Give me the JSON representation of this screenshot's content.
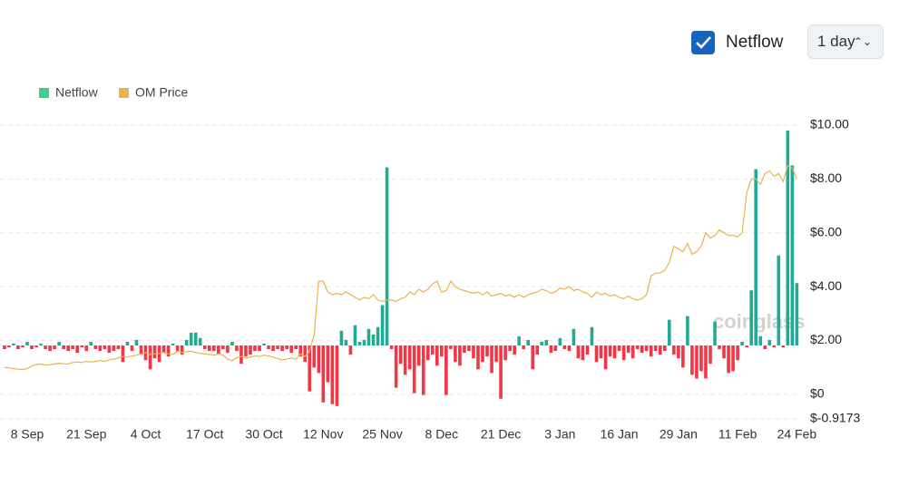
{
  "controls": {
    "checkbox_label": "Netflow",
    "interval": "1 day"
  },
  "chart_data": {
    "type": "bar_line",
    "watermark": "coinglass",
    "categories": [
      null,
      null,
      null,
      null,
      null,
      "8 Sep",
      null,
      null,
      null,
      null,
      null,
      null,
      null,
      null,
      null,
      null,
      null,
      null,
      "21 Sep",
      null,
      null,
      null,
      null,
      null,
      null,
      null,
      null,
      null,
      null,
      null,
      null,
      "4 Oct",
      null,
      null,
      null,
      null,
      null,
      null,
      null,
      null,
      null,
      null,
      null,
      null,
      "17 Oct",
      null,
      null,
      null,
      null,
      null,
      null,
      null,
      null,
      null,
      null,
      null,
      null,
      "30 Oct",
      null,
      null,
      null,
      null,
      null,
      null,
      null,
      null,
      null,
      null,
      null,
      null,
      "12 Nov",
      null,
      null,
      null,
      null,
      null,
      null,
      null,
      null,
      null,
      null,
      null,
      null,
      "25 Nov",
      null,
      null,
      null,
      null,
      null,
      null,
      null,
      null,
      null,
      null,
      null,
      null,
      "8 Dec",
      null,
      null,
      null,
      null,
      null,
      null,
      null,
      null,
      null,
      null,
      null,
      null,
      "21 Dec",
      null,
      null,
      null,
      null,
      null,
      null,
      null,
      null,
      null,
      null,
      null,
      null,
      "3 Jan",
      null,
      null,
      null,
      null,
      null,
      null,
      null,
      null,
      null,
      null,
      null,
      null,
      "16 Jan",
      null,
      null,
      null,
      null,
      null,
      null,
      null,
      null,
      null,
      null,
      null,
      null,
      "29 Jan",
      null,
      null,
      null,
      null,
      null,
      null,
      null,
      null,
      null,
      null,
      null,
      null,
      "11 Feb",
      null,
      null,
      null,
      null,
      null,
      null,
      null,
      null,
      null,
      null,
      null,
      null,
      "24 Feb"
    ],
    "series": [
      {
        "name": "Netflow",
        "color": "#22ab94",
        "negative_color": "#f23645",
        "legend_color": "#3ecf8e",
        "axis": "y2",
        "values": [
          -0.2,
          -0.1,
          0.1,
          -0.2,
          -0.1,
          0.2,
          -0.2,
          -0.1,
          0.1,
          -0.2,
          -0.3,
          -0.2,
          0.2,
          -0.2,
          -0.3,
          -0.2,
          -0.4,
          -0.1,
          -0.3,
          0.2,
          -0.2,
          -0.3,
          -0.2,
          -0.4,
          -0.3,
          -0.2,
          -0.9,
          0.2,
          -0.3,
          0.3,
          -0.5,
          -0.8,
          -1.3,
          -0.7,
          -0.9,
          -0.4,
          -0.6,
          0.1,
          -0.3,
          -0.5,
          0.3,
          0.7,
          0.7,
          0.4,
          -0.2,
          -0.3,
          -0.3,
          -0.5,
          -0.2,
          -0.4,
          0.2,
          -0.3,
          -1.0,
          -0.6,
          -0.5,
          -0.3,
          -0.3,
          0.1,
          -0.2,
          -0.3,
          -0.2,
          -0.3,
          -0.2,
          -0.4,
          -0.2,
          -0.6,
          -0.9,
          -2.5,
          -1.2,
          -1.5,
          -3.1,
          -2.0,
          -3.2,
          -3.3,
          0.8,
          0.3,
          -0.5,
          1.1,
          0.2,
          0.3,
          0.9,
          0.6,
          1.0,
          2.2,
          9.7,
          -0.2,
          -2.3,
          -1.0,
          -1.6,
          -1.3,
          -2.6,
          -1.1,
          -2.7,
          -0.8,
          -0.5,
          -1.1,
          -0.6,
          -2.7,
          -0.2,
          -0.9,
          -1.1,
          -0.4,
          -0.3,
          -0.7,
          -1.3,
          -0.9,
          -0.6,
          -1.5,
          -0.9,
          -2.9,
          -0.8,
          -0.3,
          -0.5,
          0.5,
          -0.2,
          0.3,
          -1.3,
          -0.5,
          0.2,
          0.3,
          -0.4,
          -0.3,
          0.4,
          -0.2,
          -0.3,
          0.9,
          -0.7,
          -0.8,
          -0.5,
          1.0,
          -0.9,
          -0.7,
          -1.3,
          -0.6,
          -0.7,
          -0.3,
          -0.8,
          -0.4,
          -0.7,
          -0.2,
          -0.4,
          -0.3,
          -0.6,
          -0.3,
          -0.5,
          -0.3,
          1.4,
          -0.5,
          -0.7,
          -1.2,
          1.6,
          -1.6,
          -1.8,
          -1.4,
          -1.8,
          -1.0,
          1.3,
          -0.2,
          -0.7,
          -1.5,
          -1.4,
          -0.8,
          0.2,
          -0.1,
          3.0,
          9.6,
          0.5,
          -0.2,
          0.3,
          -0.1,
          4.9,
          -0.1,
          11.7,
          9.8,
          3.4
        ]
      },
      {
        "name": "OM Price",
        "color": "#e8b44a",
        "values": [
          1.0,
          0.98,
          0.95,
          0.93,
          0.92,
          0.95,
          1.05,
          1.1,
          1.12,
          1.08,
          1.1,
          1.12,
          1.15,
          1.13,
          1.12,
          1.18,
          1.2,
          1.18,
          1.22,
          1.2,
          1.22,
          1.25,
          1.22,
          1.28,
          1.3,
          1.35,
          1.4,
          1.38,
          1.42,
          1.45,
          1.5,
          1.55,
          1.48,
          1.5,
          1.52,
          1.55,
          1.5,
          1.48,
          1.6,
          1.55,
          1.58,
          1.6,
          1.55,
          1.52,
          1.5,
          1.48,
          1.45,
          1.5,
          1.45,
          1.3,
          1.25,
          1.35,
          1.4,
          1.35,
          1.38,
          1.42,
          1.4,
          1.45,
          1.42,
          1.38,
          1.32,
          1.28,
          1.3,
          1.35,
          1.3,
          1.5,
          1.4,
          1.6,
          2.2,
          4.2,
          4.2,
          3.8,
          3.7,
          3.75,
          3.7,
          3.8,
          3.7,
          3.6,
          3.5,
          3.6,
          3.55,
          3.7,
          3.5,
          3.45,
          3.5,
          3.5,
          3.45,
          3.55,
          3.6,
          3.8,
          3.7,
          3.9,
          3.8,
          3.9,
          4.1,
          4.2,
          3.8,
          3.85,
          4.2,
          4.0,
          3.9,
          3.85,
          3.8,
          3.75,
          3.8,
          3.7,
          3.8,
          3.65,
          3.7,
          3.75,
          3.65,
          3.7,
          3.6,
          3.7,
          3.6,
          3.7,
          3.75,
          3.8,
          3.9,
          3.85,
          3.75,
          3.8,
          3.95,
          3.9,
          4.0,
          3.85,
          3.9,
          3.8,
          3.75,
          3.6,
          3.8,
          3.7,
          3.75,
          3.65,
          3.7,
          3.6,
          3.55,
          3.65,
          3.55,
          3.5,
          3.55,
          3.7,
          4.4,
          4.5,
          4.5,
          4.6,
          4.9,
          5.5,
          5.4,
          5.3,
          5.6,
          5.2,
          5.3,
          5.5,
          6.0,
          5.8,
          5.9,
          6.1,
          6.0,
          5.9,
          5.9,
          5.85,
          6.0,
          7.5,
          8.0,
          8.0,
          7.8,
          8.2,
          8.3,
          8.1,
          8.2,
          7.9,
          8.5,
          8.4,
          8.0
        ]
      }
    ],
    "ylim": [
      -0.9173,
      10
    ],
    "yticks": [
      {
        "value": 10,
        "label": "$10.00"
      },
      {
        "value": 8,
        "label": "$8.00"
      },
      {
        "value": 6,
        "label": "$6.00"
      },
      {
        "value": 4,
        "label": "$4.00"
      },
      {
        "value": 2,
        "label": "$2.00"
      },
      {
        "value": 0,
        "label": "$0"
      },
      {
        "value": -0.9173,
        "label": "$-0.9173"
      }
    ],
    "y2lim": [
      -4,
      12
    ],
    "grid": true,
    "legend": "top-left"
  }
}
